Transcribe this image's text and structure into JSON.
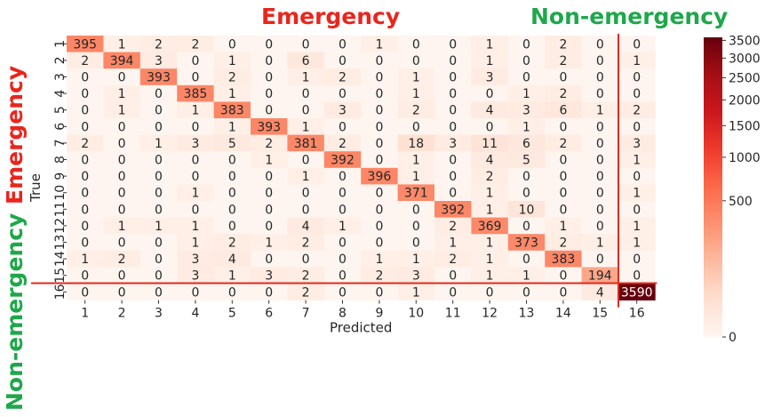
{
  "header": {
    "emergency_label": "Emergency",
    "non_emergency_label": "Non-emergency"
  },
  "colors": {
    "emergency": "#e8261e",
    "non_emergency": "#1fa74b",
    "divider": "#e02a1e",
    "cmap_low": "#fff5f0",
    "cmap_high": "#67000d"
  },
  "chart_data": {
    "type": "heatmap",
    "title": "",
    "xlabel": "Predicted",
    "ylabel": "True",
    "x_categories": [
      "1",
      "2",
      "3",
      "4",
      "5",
      "6",
      "7",
      "8",
      "9",
      "10",
      "11",
      "12",
      "13",
      "14",
      "15",
      "16"
    ],
    "y_categories": [
      "1",
      "2",
      "3",
      "4",
      "5",
      "6",
      "7",
      "8",
      "9",
      "10",
      "11",
      "12",
      "13",
      "14",
      "15",
      "16"
    ],
    "y_tick_labels": [
      "1",
      "2",
      "3",
      "4",
      "5",
      "6",
      "7",
      "8",
      "9",
      "10",
      "11",
      "12",
      "13",
      "14",
      "15",
      "16"
    ],
    "values": [
      [
        395,
        1,
        2,
        2,
        0,
        0,
        0,
        0,
        1,
        0,
        0,
        1,
        0,
        2,
        0,
        0
      ],
      [
        2,
        394,
        3,
        0,
        1,
        0,
        6,
        0,
        0,
        0,
        0,
        1,
        0,
        2,
        0,
        1
      ],
      [
        0,
        0,
        393,
        0,
        2,
        0,
        1,
        2,
        0,
        1,
        0,
        3,
        0,
        0,
        0,
        0
      ],
      [
        0,
        1,
        0,
        385,
        1,
        0,
        0,
        0,
        0,
        1,
        0,
        0,
        1,
        2,
        0,
        0
      ],
      [
        0,
        1,
        0,
        1,
        383,
        0,
        0,
        3,
        0,
        2,
        0,
        4,
        3,
        6,
        1,
        2
      ],
      [
        0,
        0,
        0,
        0,
        1,
        393,
        1,
        0,
        0,
        0,
        0,
        0,
        1,
        0,
        0,
        0
      ],
      [
        2,
        0,
        1,
        3,
        5,
        2,
        381,
        2,
        0,
        18,
        3,
        11,
        6,
        2,
        0,
        3
      ],
      [
        0,
        0,
        0,
        0,
        0,
        1,
        0,
        392,
        0,
        1,
        0,
        4,
        5,
        0,
        0,
        1
      ],
      [
        0,
        0,
        0,
        0,
        0,
        0,
        1,
        0,
        396,
        1,
        0,
        2,
        0,
        0,
        0,
        0
      ],
      [
        0,
        0,
        0,
        1,
        0,
        0,
        0,
        0,
        0,
        371,
        0,
        1,
        0,
        0,
        0,
        1
      ],
      [
        0,
        0,
        0,
        0,
        0,
        0,
        0,
        0,
        0,
        0,
        392,
        1,
        10,
        0,
        0,
        0
      ],
      [
        0,
        1,
        1,
        1,
        0,
        0,
        4,
        1,
        0,
        0,
        2,
        369,
        0,
        1,
        0,
        1
      ],
      [
        0,
        0,
        0,
        1,
        2,
        1,
        2,
        0,
        0,
        0,
        1,
        1,
        373,
        2,
        1,
        1
      ],
      [
        1,
        2,
        0,
        3,
        4,
        0,
        0,
        0,
        1,
        1,
        2,
        1,
        0,
        383,
        0,
        0
      ],
      [
        0,
        0,
        0,
        3,
        1,
        3,
        2,
        0,
        2,
        3,
        0,
        1,
        1,
        0,
        194,
        0
      ],
      [
        0,
        0,
        0,
        0,
        0,
        0,
        2,
        0,
        0,
        1,
        0,
        0,
        0,
        0,
        4,
        3590
      ]
    ],
    "colorbar": {
      "ticks": [
        0,
        500,
        1000,
        1500,
        2000,
        2500,
        3000,
        3500
      ],
      "range": [
        0,
        3590
      ],
      "scale": "power"
    },
    "split_after_index": 14
  }
}
